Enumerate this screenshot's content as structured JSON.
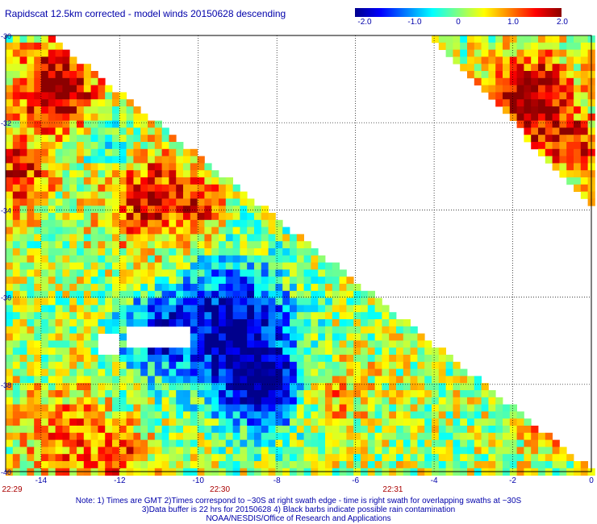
{
  "title": "Rapidscat 12.5km corrected - model winds 20150628 descending",
  "colorbar": {
    "labels": [
      "-2.0",
      "-1.0",
      "0",
      "1.0",
      "2.0"
    ],
    "values": [
      -2.0,
      -1.0,
      0,
      1.0,
      2.0
    ],
    "colors": [
      "#00008c",
      "#0000ff",
      "#0080ff",
      "#00ffff",
      "#80ff80",
      "#ffff00",
      "#ff8000",
      "#ff0000",
      "#8c0000"
    ]
  },
  "map": {
    "lon_ticks": [
      "-14",
      "-12",
      "-10",
      "-8",
      "-6",
      "-4",
      "-2",
      "0"
    ],
    "lon_values": [
      -14,
      -12,
      -10,
      -8,
      -6,
      -4,
      -2,
      0
    ],
    "lat_ticks": [
      "-30",
      "-32",
      "-34",
      "-36",
      "-38",
      "-40"
    ],
    "lat_values": [
      -30,
      -32,
      -34,
      -36,
      -38,
      -40
    ],
    "lon_range": [
      -14.9,
      0
    ],
    "lat_range": [
      -40,
      -30
    ],
    "grid": "dotted",
    "time_labels": [
      {
        "text": "22:29",
        "lon": -14.9
      },
      {
        "text": "22:30",
        "lon": -9.45
      },
      {
        "text": "22:31",
        "lon": -5.05
      }
    ]
  },
  "notes": [
    "Note: 1) Times are GMT 2)Times correspond to ~30S at right swath edge - time is right swath for overlapping swaths at ~30S",
    "3)Data buffer is 22 hrs for 20150628 4) Black barbs indicate possible rain contamination",
    "NOAA/NESDIS/Office of Research and Applications"
  ]
}
